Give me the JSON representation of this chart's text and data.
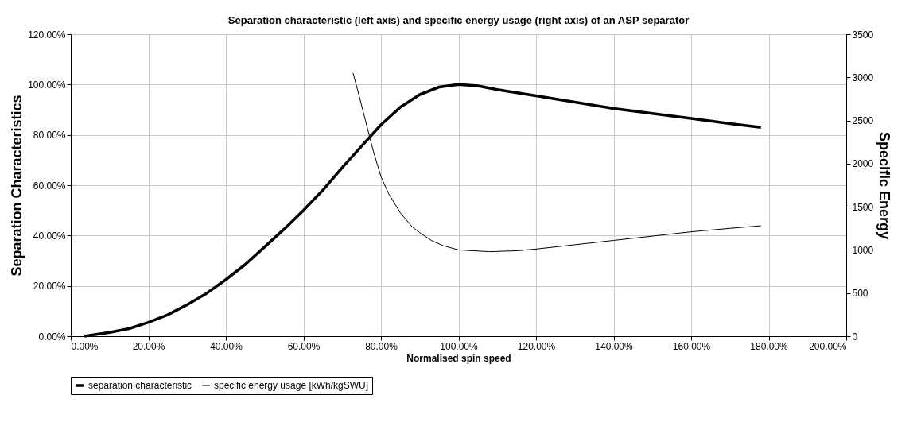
{
  "chart_data": {
    "type": "line",
    "title": "Separation characteristic (left axis) and specific energy usage (right axis) of an ASP separator",
    "xlabel": "Normalised spin speed",
    "ylabel": "Separation Characteristics",
    "y2label": "Specific Energy",
    "xlim": [
      0,
      200
    ],
    "xticks": [
      {
        "value": 0,
        "label": "0.00%"
      },
      {
        "value": 20,
        "label": "20.00%"
      },
      {
        "value": 40,
        "label": "40.00%"
      },
      {
        "value": 60,
        "label": "60.00%"
      },
      {
        "value": 80,
        "label": "80.00%"
      },
      {
        "value": 100,
        "label": "100.00%"
      },
      {
        "value": 120,
        "label": "120.00%"
      },
      {
        "value": 140,
        "label": "140.00%"
      },
      {
        "value": 160,
        "label": "160.00%"
      },
      {
        "value": 180,
        "label": "180.00%"
      },
      {
        "value": 200,
        "label": "200.00%"
      }
    ],
    "ylim": [
      0,
      120
    ],
    "yticks": [
      {
        "value": 0,
        "label": "0.00%"
      },
      {
        "value": 20,
        "label": "20.00%"
      },
      {
        "value": 40,
        "label": "40.00%"
      },
      {
        "value": 60,
        "label": "60.00%"
      },
      {
        "value": 80,
        "label": "80.00%"
      },
      {
        "value": 100,
        "label": "100.00%"
      },
      {
        "value": 120,
        "label": "120.00%"
      }
    ],
    "y2lim": [
      0,
      3500
    ],
    "y2ticks": [
      0,
      500,
      1000,
      1500,
      2000,
      2500,
      3000,
      3500
    ],
    "grid": true,
    "legend": "bottom",
    "marker": "none",
    "line_style": "solid",
    "series": [
      {
        "name": "separation characteristic",
        "color": "#000000",
        "x": [
          3.5,
          10,
          15,
          20,
          25,
          30,
          35,
          40,
          45,
          50,
          55,
          60,
          65,
          70,
          75,
          80,
          85,
          90,
          95,
          100,
          105,
          110,
          120,
          130,
          140,
          150,
          160,
          170,
          178
        ],
        "values": [
          0,
          1.5,
          3,
          5.5,
          8.5,
          12.5,
          17,
          22.5,
          28.5,
          35.5,
          42.5,
          50,
          58,
          67,
          75.5,
          84,
          91,
          96,
          99,
          100,
          99.5,
          98,
          95.5,
          93,
          90.5,
          88.5,
          86.5,
          84.5,
          83
        ]
      },
      {
        "name": "specific energy usage [kWh/kgSWU]",
        "color": "#000000",
        "axis": "y2",
        "x": [
          72.8,
          74,
          76,
          78,
          80,
          82,
          85,
          88,
          90,
          93,
          96,
          100,
          104,
          108,
          115,
          120,
          130,
          140,
          150,
          160,
          170,
          178
        ],
        "values": [
          3050,
          2850,
          2500,
          2150,
          1850,
          1650,
          1430,
          1270,
          1200,
          1110,
          1050,
          1000,
          990,
          980,
          990,
          1010,
          1060,
          1110,
          1160,
          1210,
          1250,
          1280
        ]
      }
    ]
  }
}
